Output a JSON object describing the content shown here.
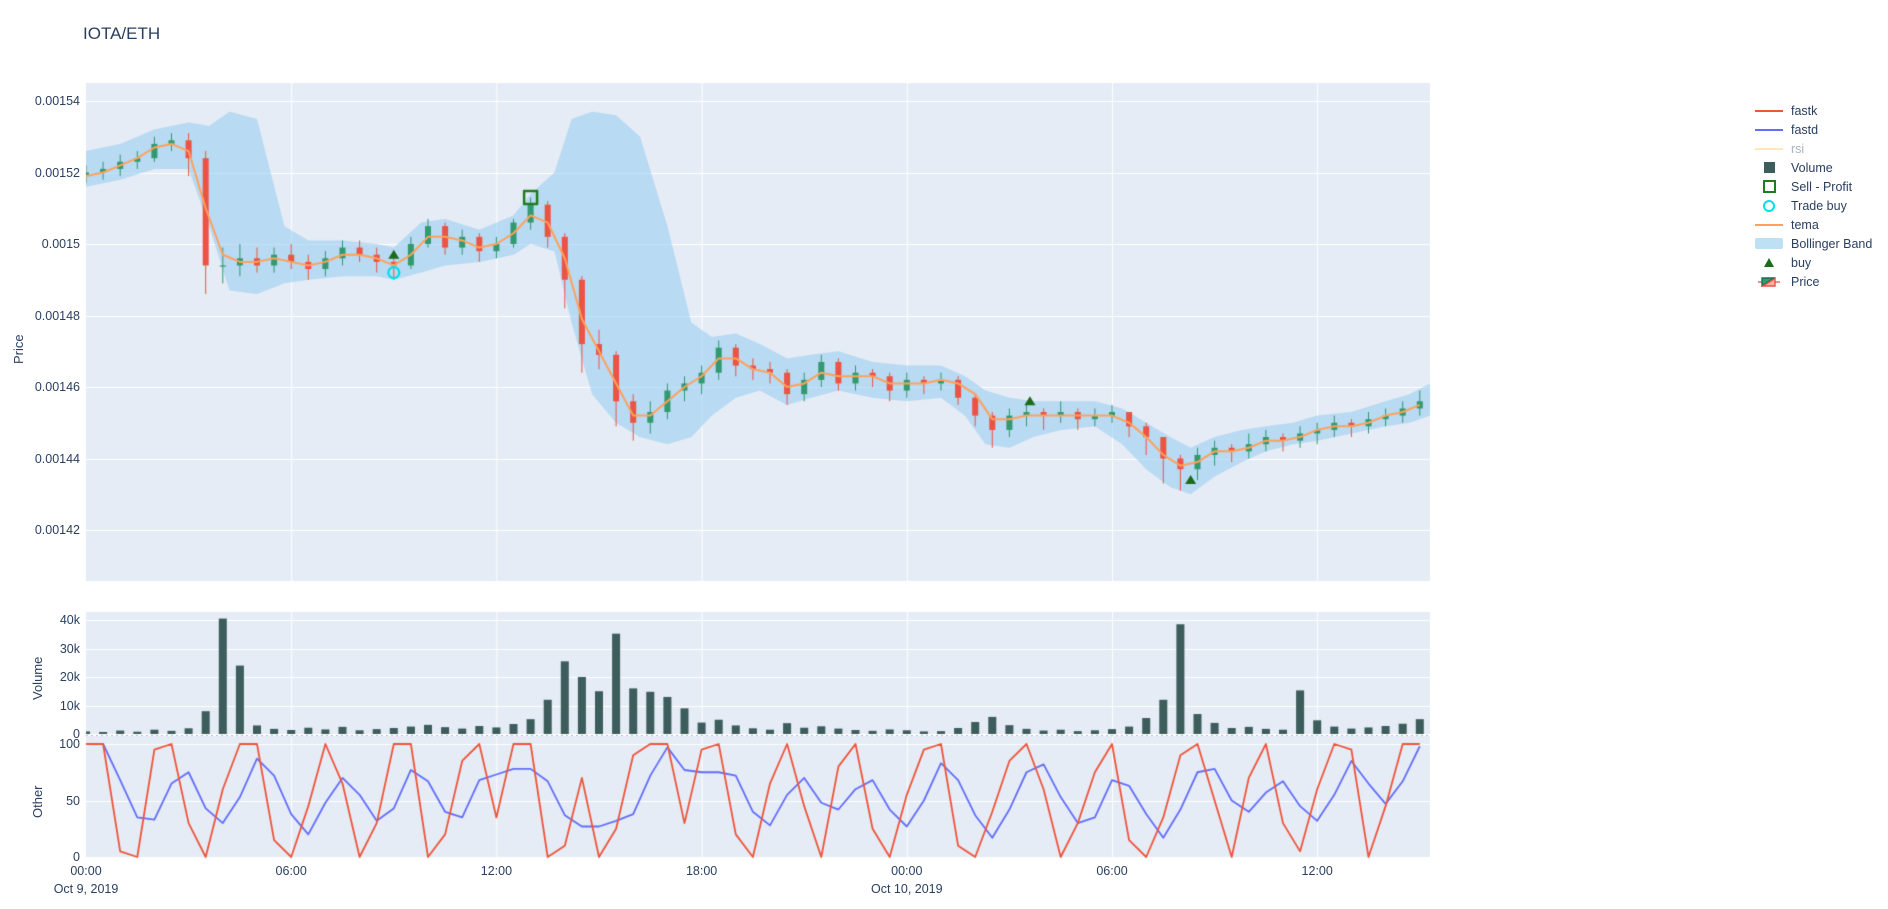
{
  "title": "IOTA/ETH",
  "colors": {
    "text": "#2a3f5f",
    "plot_background": "#e5ecf6",
    "gridline": "#ffffff",
    "candle_up": "#339970",
    "candle_down": "#eb5445",
    "tema": "#ffa15a",
    "bollinger_fill": "rgba(140,200,240,0.50)",
    "volume_bar": "#3d5c5c",
    "fastk": "#ef553b",
    "fastd": "#636efa",
    "rsi": "#fecb52",
    "buy_marker": "#1c6b1c",
    "sell_profit_marker": "#1e7d1e",
    "trade_buy_marker": "#00dfe8"
  },
  "legend": {
    "items": [
      {
        "label": "fastk",
        "type": "line",
        "color": "#ef553b",
        "dimmed": false
      },
      {
        "label": "fastd",
        "type": "line",
        "color": "#636efa",
        "dimmed": false
      },
      {
        "label": "rsi",
        "type": "line",
        "color": "#fecb52",
        "dimmed": true
      },
      {
        "label": "Volume",
        "type": "square",
        "color": "#3d5c5c",
        "dimmed": false
      },
      {
        "label": "Sell - Profit",
        "type": "open-square",
        "color": "#1e7d1e",
        "dimmed": false
      },
      {
        "label": "Trade buy",
        "type": "open-circle",
        "color": "#00dfe8",
        "dimmed": false
      },
      {
        "label": "tema",
        "type": "line",
        "color": "#ffa15a",
        "dimmed": false
      },
      {
        "label": "Bollinger Band",
        "type": "band",
        "color": "#bee0f5",
        "dimmed": false
      },
      {
        "label": "buy",
        "type": "triangle",
        "color": "#1c6b1c",
        "dimmed": false
      },
      {
        "label": "Price",
        "type": "candle",
        "color": "#339970",
        "dimmed": false
      }
    ]
  },
  "axes": {
    "x": {
      "ticks": [
        {
          "label": "00:00",
          "t": 0
        },
        {
          "label": "06:00",
          "t": 6
        },
        {
          "label": "12:00",
          "t": 12
        },
        {
          "label": "18:00",
          "t": 18
        },
        {
          "label": "00:00",
          "t": 24
        },
        {
          "label": "06:00",
          "t": 30
        },
        {
          "label": "12:00",
          "t": 36
        }
      ],
      "dates": [
        {
          "label": "Oct 9, 2019",
          "t": 0
        },
        {
          "label": "Oct 10, 2019",
          "t": 24
        }
      ],
      "range_hours": [
        0,
        39.3
      ]
    },
    "price": {
      "title": "Price",
      "ticks": [
        "0.00154",
        "0.00152",
        "0.0015",
        "0.00148",
        "0.00146",
        "0.00144",
        "0.00142"
      ],
      "tick_values": [
        1540,
        1520,
        1500,
        1480,
        1460,
        1440,
        1420
      ]
    },
    "volume": {
      "title": "Volume",
      "ticks": [
        "40k",
        "30k",
        "20k",
        "10k",
        "0"
      ],
      "tick_values": [
        40000,
        30000,
        20000,
        10000,
        0
      ]
    },
    "other": {
      "title": "Other",
      "ticks": [
        "100",
        "50",
        "0"
      ],
      "tick_values": [
        100,
        50,
        0
      ]
    }
  },
  "chart_data": {
    "type": "multi-panel-financial",
    "note": "price values are ETH x 1e-6; t = hours after Oct 9 2019 00:00; candles = [t,open,high,low,close,volume]",
    "ylim_price": [
      1401,
      1545
    ],
    "ylim_volume": [
      0,
      43000
    ],
    "ylim_other": [
      0,
      100
    ],
    "legend_position": "right",
    "grid": true,
    "candles": [
      [
        0.0,
        1519,
        1522,
        1517,
        1520,
        900
      ],
      [
        0.5,
        1520,
        1523,
        1518,
        1521,
        700
      ],
      [
        1.0,
        1521,
        1525,
        1519,
        1523,
        1200
      ],
      [
        1.5,
        1523,
        1526,
        1521,
        1524,
        800
      ],
      [
        2.0,
        1524,
        1530,
        1523,
        1528,
        1500
      ],
      [
        2.5,
        1528,
        1531,
        1526,
        1529,
        1100
      ],
      [
        3.0,
        1529,
        1531,
        1519,
        1524,
        2000
      ],
      [
        3.5,
        1524,
        1526,
        1486,
        1494,
        8000
      ],
      [
        4.0,
        1494,
        1499,
        1489,
        1494,
        40500
      ],
      [
        4.5,
        1494,
        1500,
        1491,
        1496,
        24000
      ],
      [
        5.0,
        1496,
        1499,
        1492,
        1494,
        3000
      ],
      [
        5.5,
        1494,
        1499,
        1492,
        1497,
        1800
      ],
      [
        6.0,
        1497,
        1500,
        1493,
        1495,
        1400
      ],
      [
        6.5,
        1495,
        1497,
        1490,
        1493,
        2200
      ],
      [
        7.0,
        1493,
        1498,
        1491,
        1496,
        1600
      ],
      [
        7.5,
        1496,
        1501,
        1494,
        1499,
        2500
      ],
      [
        8.0,
        1499,
        1501,
        1495,
        1497,
        1300
      ],
      [
        8.5,
        1497,
        1499,
        1492,
        1495,
        1700
      ],
      [
        9.0,
        1495,
        1497,
        1490,
        1494,
        2100
      ],
      [
        9.5,
        1494,
        1502,
        1493,
        1500,
        2600
      ],
      [
        10.0,
        1500,
        1507,
        1499,
        1505,
        3200
      ],
      [
        10.5,
        1505,
        1506,
        1497,
        1499,
        2400
      ],
      [
        11.0,
        1499,
        1504,
        1497,
        1502,
        1900
      ],
      [
        11.5,
        1502,
        1503,
        1495,
        1498,
        2800
      ],
      [
        12.0,
        1498,
        1502,
        1496,
        1500,
        2300
      ],
      [
        12.5,
        1500,
        1507,
        1499,
        1506,
        3500
      ],
      [
        13.0,
        1506,
        1513,
        1504,
        1511,
        5200
      ],
      [
        13.5,
        1511,
        1512,
        1499,
        1502,
        12000
      ],
      [
        14.0,
        1502,
        1503,
        1482,
        1490,
        25500
      ],
      [
        14.5,
        1490,
        1491,
        1464,
        1472,
        20000
      ],
      [
        15.0,
        1472,
        1476,
        1465,
        1469,
        15000
      ],
      [
        15.5,
        1469,
        1470,
        1449,
        1456,
        35200
      ],
      [
        16.0,
        1456,
        1458,
        1445,
        1450,
        16000
      ],
      [
        16.5,
        1450,
        1456,
        1447,
        1453,
        14800
      ],
      [
        17.0,
        1453,
        1461,
        1451,
        1459,
        13000
      ],
      [
        17.5,
        1459,
        1463,
        1456,
        1461,
        9000
      ],
      [
        18.0,
        1461,
        1466,
        1458,
        1464,
        4000
      ],
      [
        18.5,
        1464,
        1473,
        1462,
        1471,
        5000
      ],
      [
        19.0,
        1471,
        1472,
        1463,
        1466,
        3000
      ],
      [
        19.5,
        1466,
        1468,
        1462,
        1465,
        2000
      ],
      [
        20.0,
        1465,
        1467,
        1461,
        1464,
        1500
      ],
      [
        20.5,
        1464,
        1465,
        1455,
        1458,
        3800
      ],
      [
        21.0,
        1458,
        1464,
        1456,
        1462,
        2200
      ],
      [
        21.5,
        1462,
        1469,
        1460,
        1467,
        2700
      ],
      [
        22.0,
        1467,
        1468,
        1459,
        1461,
        1900
      ],
      [
        22.5,
        1461,
        1466,
        1459,
        1464,
        1400
      ],
      [
        23.0,
        1464,
        1465,
        1460,
        1463,
        1100
      ],
      [
        23.5,
        1463,
        1464,
        1456,
        1459,
        1600
      ],
      [
        24.0,
        1459,
        1464,
        1457,
        1462,
        1300
      ],
      [
        24.5,
        1462,
        1463,
        1458,
        1461,
        900
      ],
      [
        25.0,
        1461,
        1464,
        1459,
        1462,
        1000
      ],
      [
        25.5,
        1462,
        1463,
        1455,
        1457,
        2100
      ],
      [
        26.0,
        1457,
        1458,
        1449,
        1452,
        4200
      ],
      [
        26.5,
        1452,
        1453,
        1443,
        1448,
        6000
      ],
      [
        27.0,
        1448,
        1454,
        1446,
        1452,
        3100
      ],
      [
        27.5,
        1452,
        1455,
        1449,
        1453,
        1800
      ],
      [
        28.0,
        1453,
        1454,
        1448,
        1452,
        1200
      ],
      [
        28.5,
        1452,
        1456,
        1450,
        1453,
        1500
      ],
      [
        29.0,
        1453,
        1454,
        1448,
        1451,
        1000
      ],
      [
        29.5,
        1451,
        1454,
        1449,
        1452,
        1300
      ],
      [
        30.0,
        1452,
        1455,
        1450,
        1453,
        1700
      ],
      [
        30.5,
        1453,
        1453,
        1446,
        1449,
        2600
      ],
      [
        31.0,
        1449,
        1450,
        1441,
        1446,
        5600
      ],
      [
        31.5,
        1446,
        1446,
        1433,
        1440,
        12000
      ],
      [
        32.0,
        1440,
        1441,
        1431,
        1437,
        38500
      ],
      [
        32.5,
        1437,
        1443,
        1434,
        1441,
        7000
      ],
      [
        33.0,
        1441,
        1445,
        1438,
        1443,
        3900
      ],
      [
        33.5,
        1443,
        1444,
        1439,
        1442,
        2100
      ],
      [
        34.0,
        1442,
        1447,
        1440,
        1444,
        2500
      ],
      [
        34.5,
        1444,
        1448,
        1442,
        1446,
        1800
      ],
      [
        35.0,
        1446,
        1447,
        1442,
        1445,
        1500
      ],
      [
        35.5,
        1445,
        1449,
        1443,
        1447,
        15300
      ],
      [
        36.0,
        1447,
        1450,
        1444,
        1448,
        4800
      ],
      [
        36.5,
        1448,
        1452,
        1446,
        1450,
        2600
      ],
      [
        37.0,
        1450,
        1451,
        1446,
        1449,
        1900
      ],
      [
        37.5,
        1449,
        1453,
        1447,
        1451,
        2300
      ],
      [
        38.0,
        1451,
        1454,
        1449,
        1452,
        2800
      ],
      [
        38.5,
        1452,
        1456,
        1450,
        1454,
        3600
      ],
      [
        39.0,
        1454,
        1459,
        1452,
        1456,
        5200
      ]
    ],
    "tema": [
      1519,
      1520,
      1522,
      1524,
      1527,
      1528,
      1526,
      1510,
      1497,
      1495,
      1495,
      1496,
      1495,
      1494,
      1495,
      1497,
      1497,
      1496,
      1494,
      1497,
      1502,
      1502,
      1501,
      1499,
      1500,
      1503,
      1508,
      1506,
      1496,
      1479,
      1470,
      1461,
      1452,
      1452,
      1456,
      1460,
      1463,
      1468,
      1468,
      1465,
      1464,
      1460,
      1461,
      1464,
      1463,
      1463,
      1463,
      1461,
      1461,
      1461,
      1462,
      1461,
      1458,
      1451,
      1451,
      1452,
      1452,
      1452,
      1452,
      1452,
      1452,
      1450,
      1446,
      1441,
      1438,
      1439,
      1442,
      1442,
      1443,
      1445,
      1445,
      1446,
      1448,
      1449,
      1449,
      1450,
      1452,
      1453,
      1455
    ],
    "bollinger": [
      [
        0,
        1526,
        1516
      ],
      [
        1,
        1528,
        1518
      ],
      [
        2,
        1532,
        1521
      ],
      [
        3,
        1534,
        1521
      ],
      [
        3.6,
        1533,
        1505
      ],
      [
        4.2,
        1537,
        1487
      ],
      [
        5,
        1535,
        1486
      ],
      [
        5.8,
        1505,
        1489
      ],
      [
        6.5,
        1501,
        1490
      ],
      [
        7.5,
        1501,
        1491
      ],
      [
        8.5,
        1500,
        1491
      ],
      [
        9,
        1499,
        1490
      ],
      [
        9.8,
        1506,
        1492
      ],
      [
        10.5,
        1507,
        1494
      ],
      [
        11.5,
        1504,
        1495
      ],
      [
        12.5,
        1508,
        1497
      ],
      [
        13,
        1514,
        1500
      ],
      [
        13.7,
        1520,
        1498
      ],
      [
        14.2,
        1535,
        1478
      ],
      [
        14.8,
        1537,
        1458
      ],
      [
        15.5,
        1536,
        1450
      ],
      [
        16.2,
        1530,
        1446
      ],
      [
        17,
        1505,
        1444
      ],
      [
        17.7,
        1478,
        1446
      ],
      [
        18.3,
        1474,
        1452
      ],
      [
        19,
        1475,
        1457
      ],
      [
        19.7,
        1472,
        1459
      ],
      [
        20.5,
        1468,
        1455
      ],
      [
        21.2,
        1469,
        1457
      ],
      [
        22,
        1470,
        1459
      ],
      [
        23,
        1467,
        1457
      ],
      [
        24,
        1466,
        1456
      ],
      [
        25,
        1466,
        1457
      ],
      [
        25.7,
        1463,
        1452
      ],
      [
        26.3,
        1459,
        1444
      ],
      [
        27,
        1457,
        1443
      ],
      [
        27.7,
        1456,
        1446
      ],
      [
        28.5,
        1456,
        1448
      ],
      [
        29.5,
        1456,
        1449
      ],
      [
        30.3,
        1454,
        1444
      ],
      [
        31,
        1450,
        1437
      ],
      [
        31.7,
        1446,
        1432
      ],
      [
        32.3,
        1443,
        1430
      ],
      [
        33,
        1446,
        1435
      ],
      [
        33.8,
        1448,
        1439
      ],
      [
        34.5,
        1449,
        1442
      ],
      [
        35.3,
        1450,
        1444
      ],
      [
        36,
        1452,
        1445
      ],
      [
        37,
        1453,
        1447
      ],
      [
        38,
        1456,
        1449
      ],
      [
        38.7,
        1458,
        1450
      ],
      [
        39.3,
        1461,
        1452
      ]
    ],
    "fastk": [
      100,
      100,
      5,
      0,
      95,
      100,
      30,
      0,
      60,
      100,
      100,
      15,
      0,
      45,
      100,
      65,
      0,
      30,
      100,
      100,
      0,
      20,
      85,
      100,
      35,
      100,
      100,
      0,
      10,
      70,
      0,
      25,
      90,
      100,
      100,
      30,
      95,
      100,
      20,
      0,
      65,
      100,
      45,
      0,
      80,
      100,
      25,
      0,
      55,
      95,
      100,
      10,
      0,
      40,
      85,
      100,
      60,
      0,
      30,
      75,
      100,
      15,
      0,
      35,
      90,
      100,
      50,
      0,
      70,
      100,
      30,
      5,
      60,
      100,
      95,
      0,
      45,
      100,
      100
    ],
    "fastd": [
      100,
      100,
      68,
      35,
      33,
      65,
      75,
      43,
      30,
      53,
      87,
      72,
      38,
      20,
      48,
      70,
      55,
      32,
      43,
      77,
      67,
      40,
      35,
      68,
      73,
      78,
      78,
      67,
      37,
      27,
      27,
      32,
      38,
      72,
      97,
      77,
      75,
      75,
      72,
      40,
      28,
      55,
      70,
      48,
      42,
      60,
      68,
      42,
      27,
      50,
      83,
      68,
      37,
      17,
      42,
      75,
      82,
      53,
      30,
      35,
      68,
      63,
      38,
      17,
      42,
      75,
      78,
      50,
      40,
      57,
      67,
      45,
      32,
      55,
      85,
      65,
      47,
      67,
      98
    ],
    "rsi_visible": false,
    "markers": {
      "buy": [
        {
          "t": 9.0,
          "price": 1497
        },
        {
          "t": 27.6,
          "price": 1456
        },
        {
          "t": 32.3,
          "price": 1434
        }
      ],
      "trade_buy": [
        {
          "t": 9.0,
          "price": 1492
        }
      ],
      "sell_profit": [
        {
          "t": 13.0,
          "price": 1513
        }
      ]
    }
  }
}
